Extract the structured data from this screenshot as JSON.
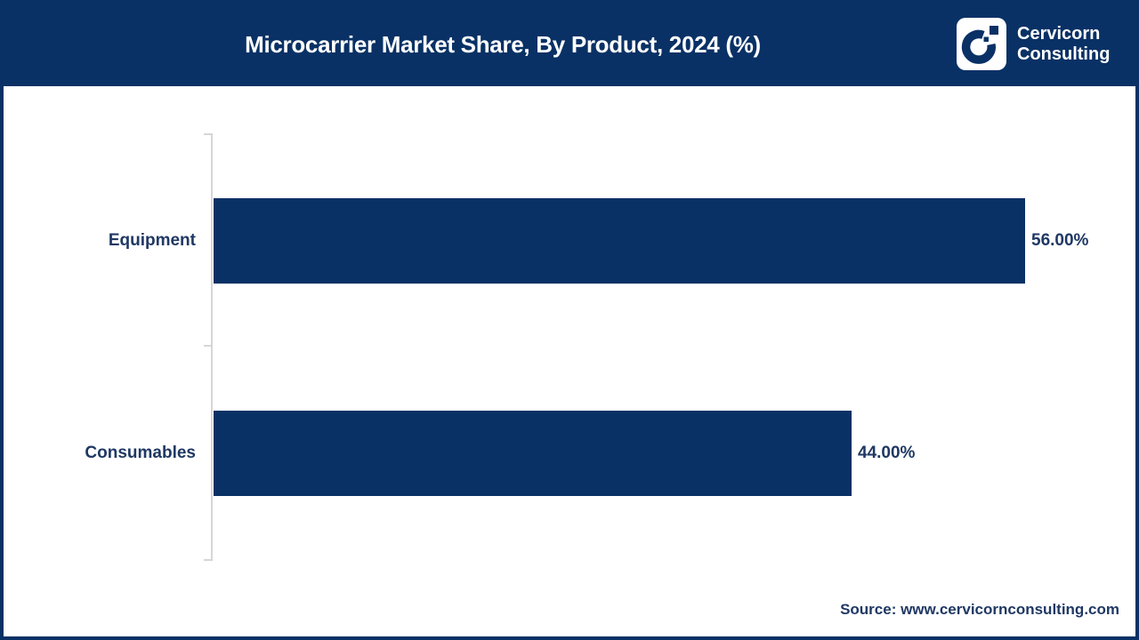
{
  "header": {
    "title": "Microcarrier Market Share, By Product, 2024 (%)",
    "logo": {
      "name": "Cervicorn Consulting",
      "line1": "Cervicorn",
      "line2": "Consulting"
    }
  },
  "chart_data": {
    "type": "bar",
    "orientation": "horizontal",
    "title": "Microcarrier Market Share, By Product, 2024 (%)",
    "categories": [
      "Equipment",
      "Consumables"
    ],
    "values": [
      56,
      44
    ],
    "value_labels": [
      "56.00%",
      "44.00%"
    ],
    "unit": "%",
    "xlim": [
      0,
      63
    ],
    "grid": "off",
    "legend": "none",
    "bar_color": "#093165",
    "category_label_color": "#1f3864",
    "value_label_color": "#1f3864",
    "axis_color": "#d6d6d6"
  },
  "footer": {
    "source": "Source: www.cervicornconsulting.com"
  },
  "colors": {
    "navy": "#093165",
    "text_navy": "#1f3864",
    "axis_gray": "#d6d6d6",
    "background": "#ffffff"
  }
}
